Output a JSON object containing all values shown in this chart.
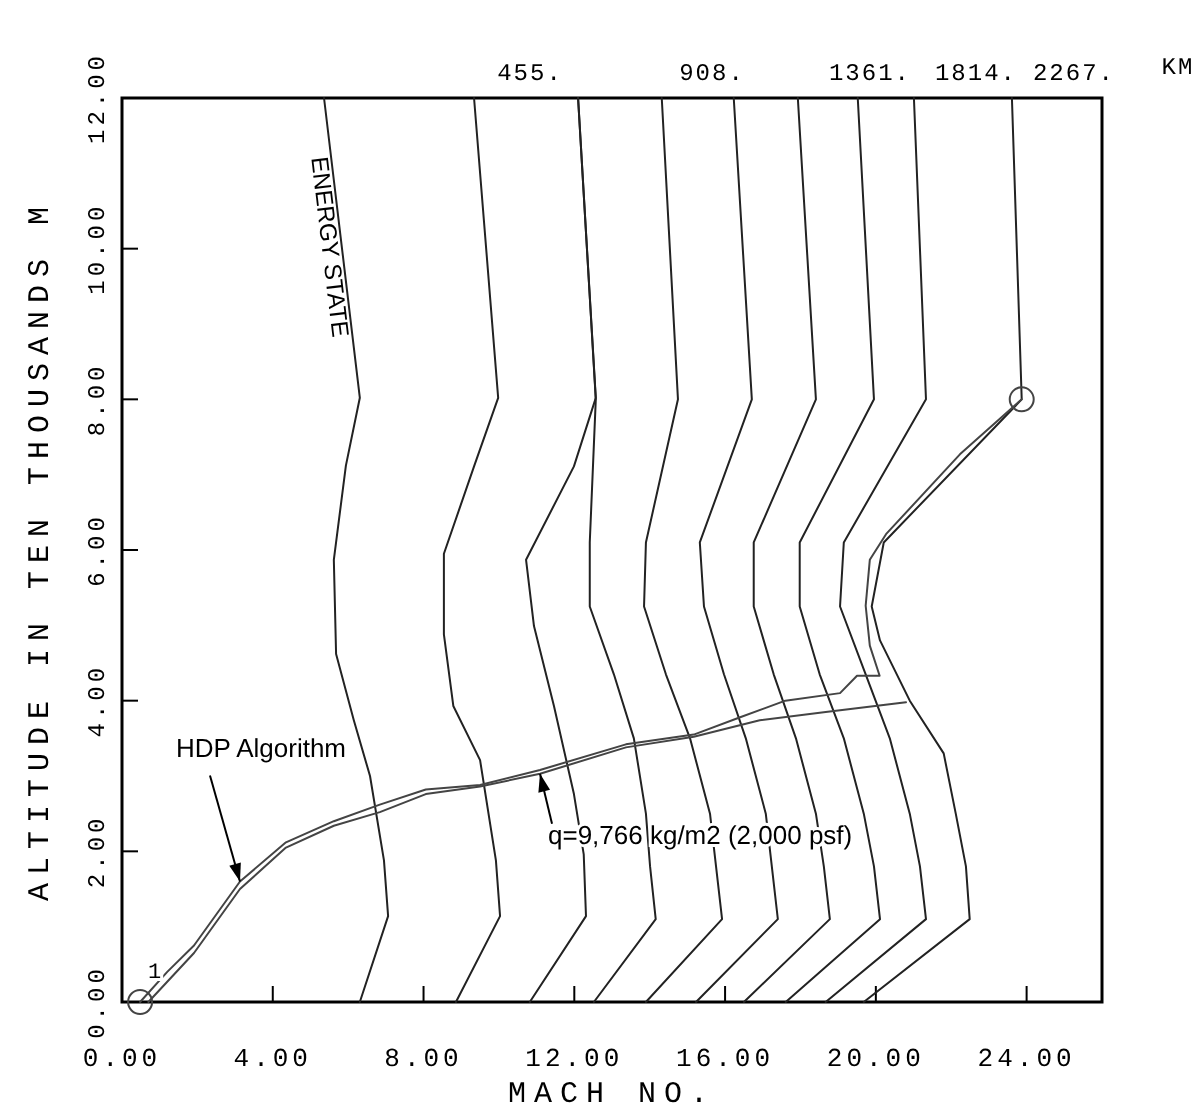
{
  "chart_data": {
    "type": "line",
    "xlabel": "MACH NO.",
    "ylabel": "ALTITUDE IN TEN THOUSANDS  M",
    "xlim": [
      0,
      26
    ],
    "ylim": [
      0,
      12
    ],
    "xticks": [
      {
        "value": 0,
        "label": "0.00"
      },
      {
        "value": 4,
        "label": "4.00"
      },
      {
        "value": 8,
        "label": "8.00"
      },
      {
        "value": 12,
        "label": "12.00"
      },
      {
        "value": 16,
        "label": "16.00"
      },
      {
        "value": 20,
        "label": "20.00"
      },
      {
        "value": 24,
        "label": "24.00"
      }
    ],
    "yticks": [
      {
        "value": 0,
        "label": "0.00"
      },
      {
        "value": 2,
        "label": "2.00"
      },
      {
        "value": 4,
        "label": "4.00"
      },
      {
        "value": 6,
        "label": "6.00"
      },
      {
        "value": 8,
        "label": "8.00"
      },
      {
        "value": 10,
        "label": "10.00"
      },
      {
        "value": 12,
        "label": "12.00"
      }
    ],
    "grid": false,
    "legend": false,
    "marker": "none",
    "line_style": "solid",
    "series": [
      {
        "name": "ENERGY STATE",
        "color": "#222222",
        "x": [
          6.31,
          7.06,
          6.95,
          6.58,
          6.15,
          5.68,
          5.62,
          5.94,
          6.31,
          5.36
        ],
        "values": [
          0,
          1.14,
          1.88,
          3.0,
          3.74,
          4.62,
          5.87,
          7.12,
          8.02,
          12
        ]
      },
      {
        "color": "#222222",
        "x": [
          8.86,
          10.03,
          9.92,
          9.5,
          8.79,
          8.54,
          8.54,
          9.34,
          9.98,
          9.34
        ],
        "values": [
          0,
          1.14,
          1.88,
          3.21,
          3.93,
          4.88,
          5.95,
          7.11,
          8.02,
          12
        ]
      },
      {
        "color": "#222222",
        "x": [
          10.82,
          12.31,
          12.25,
          11.99,
          11.46,
          10.93,
          10.72,
          11.99,
          12.57,
          12.1
        ],
        "values": [
          0,
          1.14,
          1.96,
          2.76,
          3.93,
          4.99,
          5.87,
          7.11,
          8.02,
          12
        ]
      },
      {
        "color": "#222222",
        "x": [
          12.52,
          14.16,
          14.01,
          13.9,
          13.58,
          13.05,
          12.41,
          12.41,
          12.57,
          12.1
        ],
        "values": [
          0,
          1.1,
          1.8,
          2.5,
          3.5,
          4.35,
          5.25,
          6.1,
          8,
          12
        ]
      },
      {
        "color": "#222222",
        "x": [
          13.9,
          15.92,
          15.76,
          15.6,
          15.07,
          14.43,
          13.85,
          13.9,
          14.75,
          14.32
        ],
        "values": [
          0,
          1.1,
          1.8,
          2.5,
          3.5,
          4.35,
          5.25,
          6.1,
          8,
          12
        ]
      },
      {
        "color": "#222222",
        "x": [
          15.23,
          17.4,
          17.24,
          17.08,
          16.55,
          15.97,
          15.44,
          15.33,
          16.71,
          16.23
        ],
        "values": [
          0,
          1.1,
          1.8,
          2.5,
          3.5,
          4.35,
          5.25,
          6.1,
          8,
          12
        ]
      },
      {
        "color": "#222222",
        "x": [
          16.5,
          18.78,
          18.62,
          18.41,
          17.88,
          17.29,
          16.76,
          16.76,
          18.41,
          17.93
        ],
        "values": [
          0,
          1.1,
          1.8,
          2.5,
          3.5,
          4.35,
          5.25,
          6.1,
          8,
          12
        ]
      },
      {
        "color": "#222222",
        "x": [
          17.61,
          20.11,
          19.95,
          19.68,
          19.15,
          18.51,
          17.98,
          17.98,
          19.95,
          19.52
        ],
        "values": [
          0,
          1.1,
          1.8,
          2.5,
          3.5,
          4.35,
          5.25,
          6.1,
          8,
          12
        ]
      },
      {
        "color": "#222222",
        "x": [
          18.67,
          21.33,
          21.17,
          20.9,
          20.37,
          19.73,
          19.05,
          19.15,
          21.33,
          21.01
        ],
        "values": [
          0,
          1.1,
          1.8,
          2.5,
          3.5,
          4.35,
          5.25,
          6.1,
          8,
          12
        ]
      },
      {
        "color": "#222222",
        "x": [
          19.68,
          22.49,
          22.39,
          22.12,
          21.8,
          20.9,
          20.11,
          19.89,
          20.21,
          23.87,
          23.61
        ],
        "values": [
          0,
          1.1,
          1.8,
          2.5,
          3.3,
          4.0,
          4.8,
          5.25,
          6.1,
          8,
          12
        ]
      },
      {
        "color": "#444444",
        "x": [
          0.48,
          1.2,
          1.91,
          3.13,
          4.35,
          5.62,
          6.84,
          8.06,
          9.5,
          11.09,
          13.37,
          15.17,
          16.4,
          17.6,
          19.05,
          19.5,
          20.1,
          19.84,
          19.73,
          19.84,
          20.27,
          22.23,
          23.87
        ],
        "values": [
          0,
          0.4,
          0.75,
          1.6,
          2.12,
          2.4,
          2.62,
          2.82,
          2.88,
          3.08,
          3.42,
          3.55,
          3.78,
          4.0,
          4.1,
          4.33,
          4.33,
          4.73,
          5.26,
          5.87,
          6.21,
          7.27,
          8.0
        ]
      },
      {
        "color": "#444444",
        "x": [
          0.7,
          1.91,
          3.13,
          4.35,
          5.62,
          6.84,
          8.06,
          9.5,
          11.09,
          13.37,
          15.17,
          16.92,
          18.67,
          20.8
        ],
        "values": [
          0,
          0.65,
          1.5,
          2.05,
          2.34,
          2.52,
          2.76,
          2.86,
          3.03,
          3.38,
          3.52,
          3.74,
          3.85,
          3.98
        ]
      },
      {
        "type": "scatter",
        "marker": "circle",
        "color": "#444444",
        "x": [
          0.48,
          23.87
        ],
        "values": [
          0,
          8.0
        ]
      }
    ],
    "annotations": [
      {
        "text": "HDP Algorithm",
        "x": 3.13,
        "y": 1.6
      },
      {
        "text": "q=9,766 kg/m2 (2,000 psf)",
        "x": 11.09,
        "y": 3.03
      },
      "1",
      "455.",
      "908.",
      "1361.",
      "1814.",
      "2267.",
      "KM"
    ]
  }
}
